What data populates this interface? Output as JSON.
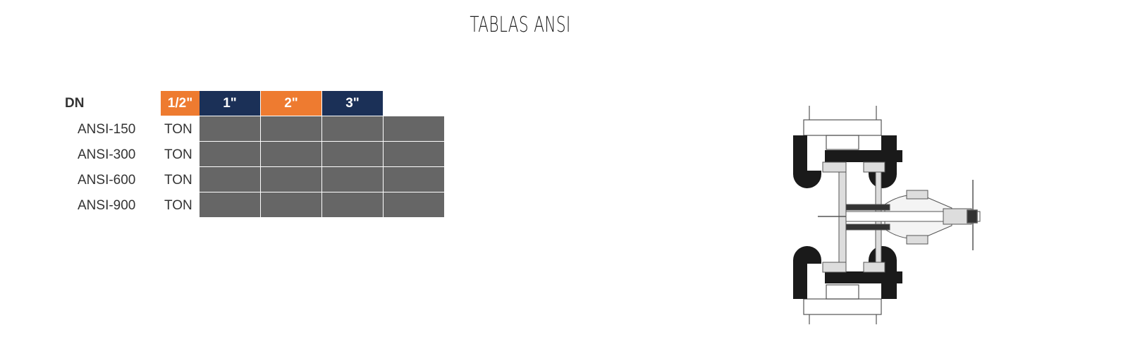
{
  "title": "TABLAS ANSI",
  "table": {
    "corner_label": "DN",
    "headers": [
      {
        "label": "1/2\"",
        "color": "#ee7b30"
      },
      {
        "label": "1\"",
        "color": "#1b3057"
      },
      {
        "label": "2\"",
        "color": "#ee7b30"
      },
      {
        "label": "3\"",
        "color": "#1b3057"
      }
    ],
    "rows": [
      {
        "label": "ANSI-150",
        "unit": "TON"
      },
      {
        "label": "ANSI-300",
        "unit": "TON"
      },
      {
        "label": "ANSI-600",
        "unit": "TON"
      },
      {
        "label": "ANSI-900",
        "unit": "TON"
      }
    ],
    "cell_color": "#666666"
  },
  "image": {
    "icon": "gate-valve-diagram"
  }
}
